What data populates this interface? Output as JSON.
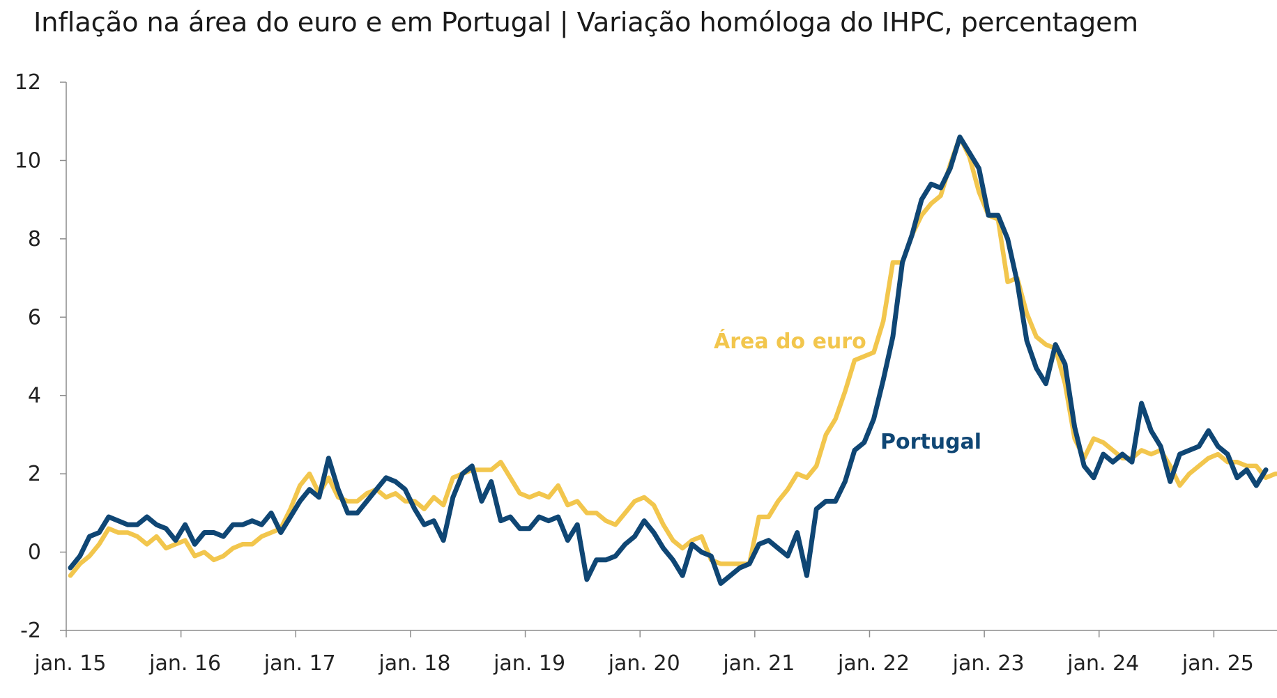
{
  "title": "Inflação na área do euro e em Portugal | Variação homóloga do IHPC, percentagem",
  "colors": {
    "euro_area": "#f2c64d",
    "portugal": "#0f4674",
    "axis": "#8c8c8c",
    "text": "#222222"
  },
  "chart_data": {
    "type": "line",
    "title": "Inflação na área do euro e em Portugal | Variação homóloga do IHPC, percentagem",
    "xlabel": "",
    "ylabel": "",
    "x_start": "jan. 15",
    "x_frequency": "monthly",
    "x_ticks": [
      "jan. 15",
      "jan. 16",
      "jan. 17",
      "jan. 18",
      "jan. 19",
      "jan. 20",
      "jan. 21",
      "jan. 22",
      "jan. 23",
      "jan. 24",
      "jan. 25"
    ],
    "y_ticks": [
      -2,
      0,
      2,
      4,
      6,
      8,
      10,
      12
    ],
    "ylim": [
      -2,
      12
    ],
    "grid": false,
    "series": [
      {
        "name": "Área do euro",
        "color": "#f2c64d",
        "values": [
          -0.6,
          -0.3,
          -0.1,
          0.2,
          0.6,
          0.5,
          0.5,
          0.4,
          0.2,
          0.4,
          0.1,
          0.2,
          0.3,
          -0.1,
          0.0,
          -0.2,
          -0.1,
          0.1,
          0.2,
          0.2,
          0.4,
          0.5,
          0.6,
          1.1,
          1.7,
          2.0,
          1.5,
          1.9,
          1.4,
          1.3,
          1.3,
          1.5,
          1.6,
          1.4,
          1.5,
          1.3,
          1.3,
          1.1,
          1.4,
          1.2,
          1.9,
          2.0,
          2.1,
          2.1,
          2.1,
          2.3,
          1.9,
          1.5,
          1.4,
          1.5,
          1.4,
          1.7,
          1.2,
          1.3,
          1.0,
          1.0,
          0.8,
          0.7,
          1.0,
          1.3,
          1.4,
          1.2,
          0.7,
          0.3,
          0.1,
          0.3,
          0.4,
          -0.2,
          -0.3,
          -0.3,
          -0.3,
          -0.3,
          0.9,
          0.9,
          1.3,
          1.6,
          2.0,
          1.9,
          2.2,
          3.0,
          3.4,
          4.1,
          4.9,
          5.0,
          5.1,
          5.9,
          7.4,
          7.4,
          8.1,
          8.6,
          8.9,
          9.1,
          9.9,
          10.6,
          10.1,
          9.2,
          8.6,
          8.5,
          6.9,
          7.0,
          6.1,
          5.5,
          5.3,
          5.2,
          4.3,
          2.9,
          2.4,
          2.9,
          2.8,
          2.6,
          2.4,
          2.4,
          2.6,
          2.5,
          2.6,
          2.2,
          1.7,
          2.0,
          2.2,
          2.4,
          2.5,
          2.3,
          2.3,
          2.2,
          2.2,
          1.9,
          2.0,
          2.0
        ]
      },
      {
        "name": "Portugal",
        "color": "#0f4674",
        "values": [
          -0.4,
          -0.1,
          0.4,
          0.5,
          0.9,
          0.8,
          0.7,
          0.7,
          0.9,
          0.7,
          0.6,
          0.3,
          0.7,
          0.2,
          0.5,
          0.5,
          0.4,
          0.7,
          0.7,
          0.8,
          0.7,
          1.0,
          0.5,
          0.9,
          1.3,
          1.6,
          1.4,
          2.4,
          1.6,
          1.0,
          1.0,
          1.3,
          1.6,
          1.9,
          1.8,
          1.6,
          1.1,
          0.7,
          0.8,
          0.3,
          1.4,
          2.0,
          2.2,
          1.3,
          1.8,
          0.8,
          0.9,
          0.6,
          0.6,
          0.9,
          0.8,
          0.9,
          0.3,
          0.7,
          -0.7,
          -0.2,
          -0.2,
          -0.1,
          0.2,
          0.4,
          0.8,
          0.5,
          0.1,
          -0.2,
          -0.6,
          0.2,
          0.0,
          -0.1,
          -0.8,
          -0.6,
          -0.4,
          -0.3,
          0.2,
          0.3,
          0.1,
          -0.1,
          0.5,
          -0.6,
          1.1,
          1.3,
          1.3,
          1.8,
          2.6,
          2.8,
          3.4,
          4.4,
          5.5,
          7.4,
          8.1,
          9.0,
          9.4,
          9.3,
          9.8,
          10.6,
          10.2,
          9.8,
          8.6,
          8.6,
          8.0,
          6.9,
          5.4,
          4.7,
          4.3,
          5.3,
          4.8,
          3.2,
          2.2,
          1.9,
          2.5,
          2.3,
          2.5,
          2.3,
          3.8,
          3.1,
          2.7,
          1.8,
          2.5,
          2.6,
          2.7,
          3.1,
          2.7,
          2.5,
          1.9,
          2.1,
          1.7,
          2.1
        ]
      }
    ],
    "annotations": [
      {
        "text": "Área do euro",
        "series": "Área do euro",
        "x": "jul. 21",
        "y": 5.5
      },
      {
        "text": "Portugal",
        "series": "Portugal",
        "x": "jan. 22",
        "y": 2.6
      }
    ]
  }
}
